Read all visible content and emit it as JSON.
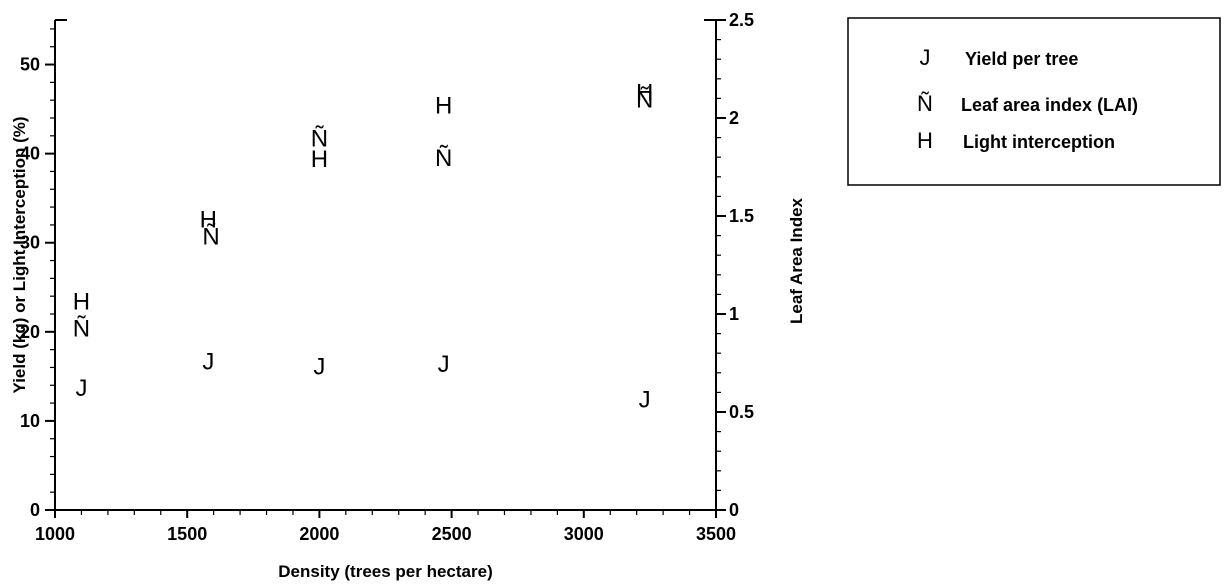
{
  "chart_data": {
    "type": "scatter",
    "xlabel": "Density (trees per hectare)",
    "ylabel": "Yield (kg) or Light Interception (%)",
    "y2label": "Leaf Area Index",
    "xlim": [
      1000,
      3500
    ],
    "ylim": [
      0,
      55
    ],
    "y2lim": [
      0,
      2.5
    ],
    "x_ticks": [
      "1000",
      "1500",
      "2000",
      "2500",
      "3000",
      "3500"
    ],
    "y_ticks": [
      "0",
      "10",
      "20",
      "30",
      "40",
      "50"
    ],
    "y2_ticks": [
      "0",
      "0.5",
      "1",
      "1.5",
      "2",
      "2.5"
    ],
    "grid": false,
    "legend_position": "right",
    "series": [
      {
        "name": "Yield per tree",
        "marker": "J",
        "axis": "left",
        "x": [
          1100,
          1580,
          2000,
          2470,
          3230
        ],
        "y": [
          13.8,
          16.8,
          16.2,
          16.5,
          12.5
        ]
      },
      {
        "name": "Leaf area index (LAI)",
        "marker": "Ñ",
        "axis": "right",
        "x": [
          1100,
          1590,
          2000,
          2470,
          3230
        ],
        "y": [
          0.93,
          1.4,
          1.9,
          1.8,
          2.1
        ]
      },
      {
        "name": "Light interception",
        "marker": "H",
        "axis": "left",
        "x": [
          1100,
          1580,
          2000,
          2470,
          3230
        ],
        "y": [
          23.5,
          32.7,
          39.5,
          45.5,
          47.0
        ]
      }
    ]
  }
}
